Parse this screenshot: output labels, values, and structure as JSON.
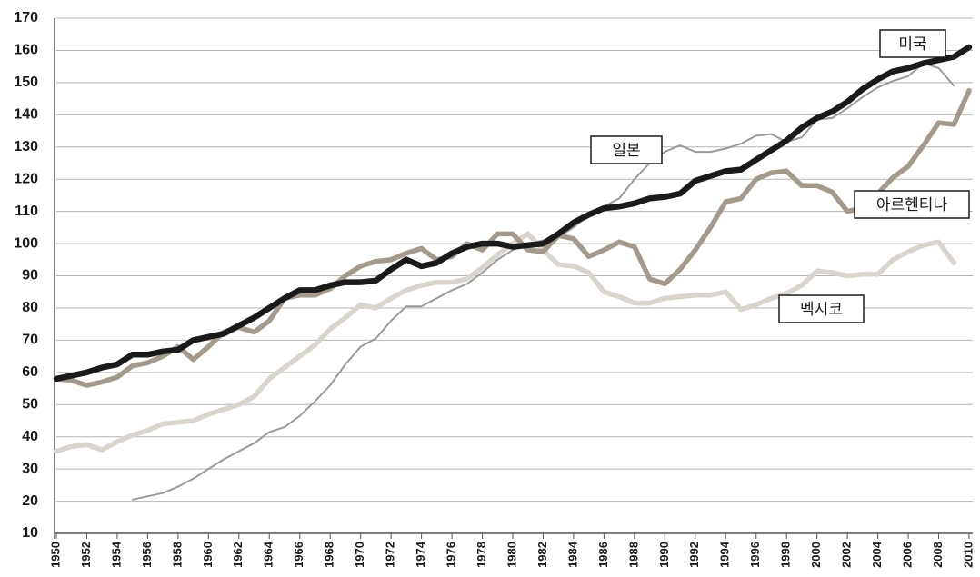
{
  "chart_data": {
    "type": "line",
    "x": [
      1950,
      1951,
      1952,
      1953,
      1954,
      1955,
      1956,
      1957,
      1958,
      1959,
      1960,
      1961,
      1962,
      1963,
      1964,
      1965,
      1966,
      1967,
      1968,
      1969,
      1970,
      1971,
      1972,
      1973,
      1974,
      1975,
      1976,
      1977,
      1978,
      1979,
      1980,
      1981,
      1982,
      1983,
      1984,
      1985,
      1986,
      1987,
      1988,
      1989,
      1990,
      1991,
      1992,
      1993,
      1994,
      1995,
      1996,
      1997,
      1998,
      1999,
      2000,
      2001,
      2002,
      2003,
      2004,
      2005,
      2006,
      2007,
      2008,
      2009,
      2010
    ],
    "series": [
      {
        "name": "미국",
        "color": "#1a1a1a",
        "values": [
          58,
          59,
          60,
          61.5,
          62.5,
          65.5,
          65.5,
          66.5,
          67,
          70,
          71,
          72,
          74.5,
          77,
          80,
          83,
          85.5,
          85.5,
          87,
          88,
          88,
          88.5,
          92,
          95,
          93,
          94,
          97,
          99,
          100,
          100,
          99,
          99.5,
          100,
          103,
          106.5,
          109,
          111,
          111.5,
          112.5,
          114,
          114.5,
          115.5,
          119.5,
          121,
          122.5,
          123,
          126,
          129,
          132,
          136,
          139,
          141,
          144,
          148,
          151,
          153.5,
          154.5,
          156,
          157,
          158,
          161
        ]
      },
      {
        "name": "일본",
        "color": "#9a9a9a",
        "values": [
          null,
          null,
          null,
          null,
          null,
          20.5,
          21.5,
          22.5,
          24.5,
          27,
          30,
          33,
          35.5,
          38,
          41.5,
          43,
          46.5,
          51,
          56,
          62.5,
          68,
          70.5,
          76,
          80.5,
          80.5,
          83,
          85.5,
          87.5,
          91,
          95,
          98,
          100,
          101,
          102,
          105,
          109,
          111.5,
          114,
          120,
          125,
          128.5,
          130.5,
          128.5,
          128.5,
          129.5,
          131,
          133.5,
          134,
          131.5,
          133,
          138.5,
          139,
          142,
          145.5,
          148.5,
          150.5,
          152,
          156,
          154.5,
          149,
          null
        ]
      },
      {
        "name": "아르헨티나",
        "color": "#a39a8c",
        "values": [
          58,
          57.5,
          56,
          57,
          58.5,
          62,
          63,
          65,
          68,
          64,
          68,
          72.5,
          74,
          72.5,
          76,
          83,
          84,
          84,
          86,
          90,
          93,
          94.5,
          95,
          97,
          98.5,
          95,
          96,
          100,
          98,
          103,
          103,
          98,
          97.5,
          102.5,
          101.5,
          96,
          98,
          100.5,
          99,
          89,
          87.5,
          92,
          98,
          105,
          113,
          114,
          120,
          122,
          122.5,
          118,
          118,
          116,
          110,
          111,
          115.5,
          120.5,
          124,
          130.5,
          137.5,
          137,
          147.5
        ]
      },
      {
        "name": "멕시코",
        "color": "#d9d4cc",
        "values": [
          35.5,
          37,
          37.5,
          36,
          38.5,
          40.5,
          42,
          44,
          44.5,
          45,
          47,
          48.5,
          50,
          52.5,
          58,
          61.5,
          65,
          68.5,
          73.5,
          77,
          81,
          80,
          83,
          85.5,
          87,
          88,
          88,
          89,
          92.5,
          96.5,
          100,
          103,
          98,
          93.5,
          93,
          91,
          85,
          83.5,
          81.5,
          81.5,
          83,
          83.5,
          84,
          84,
          85,
          79.5,
          81,
          83,
          84.5,
          87,
          91.5,
          91,
          90,
          90.5,
          90.5,
          95,
          97.5,
          99.5,
          100.5,
          94,
          null
        ]
      }
    ],
    "xlim": [
      1950,
      2010
    ],
    "xticks": [
      1950,
      1952,
      1954,
      1956,
      1958,
      1960,
      1962,
      1964,
      1966,
      1968,
      1970,
      1972,
      1974,
      1976,
      1978,
      1980,
      1982,
      1984,
      1986,
      1988,
      1990,
      1992,
      1994,
      1996,
      1998,
      2000,
      2002,
      2004,
      2006,
      2008,
      2010
    ],
    "ylim": [
      10,
      170
    ],
    "yticks": [
      10,
      20,
      30,
      40,
      50,
      60,
      70,
      80,
      90,
      100,
      110,
      120,
      130,
      140,
      150,
      160,
      170
    ],
    "grid": true
  }
}
